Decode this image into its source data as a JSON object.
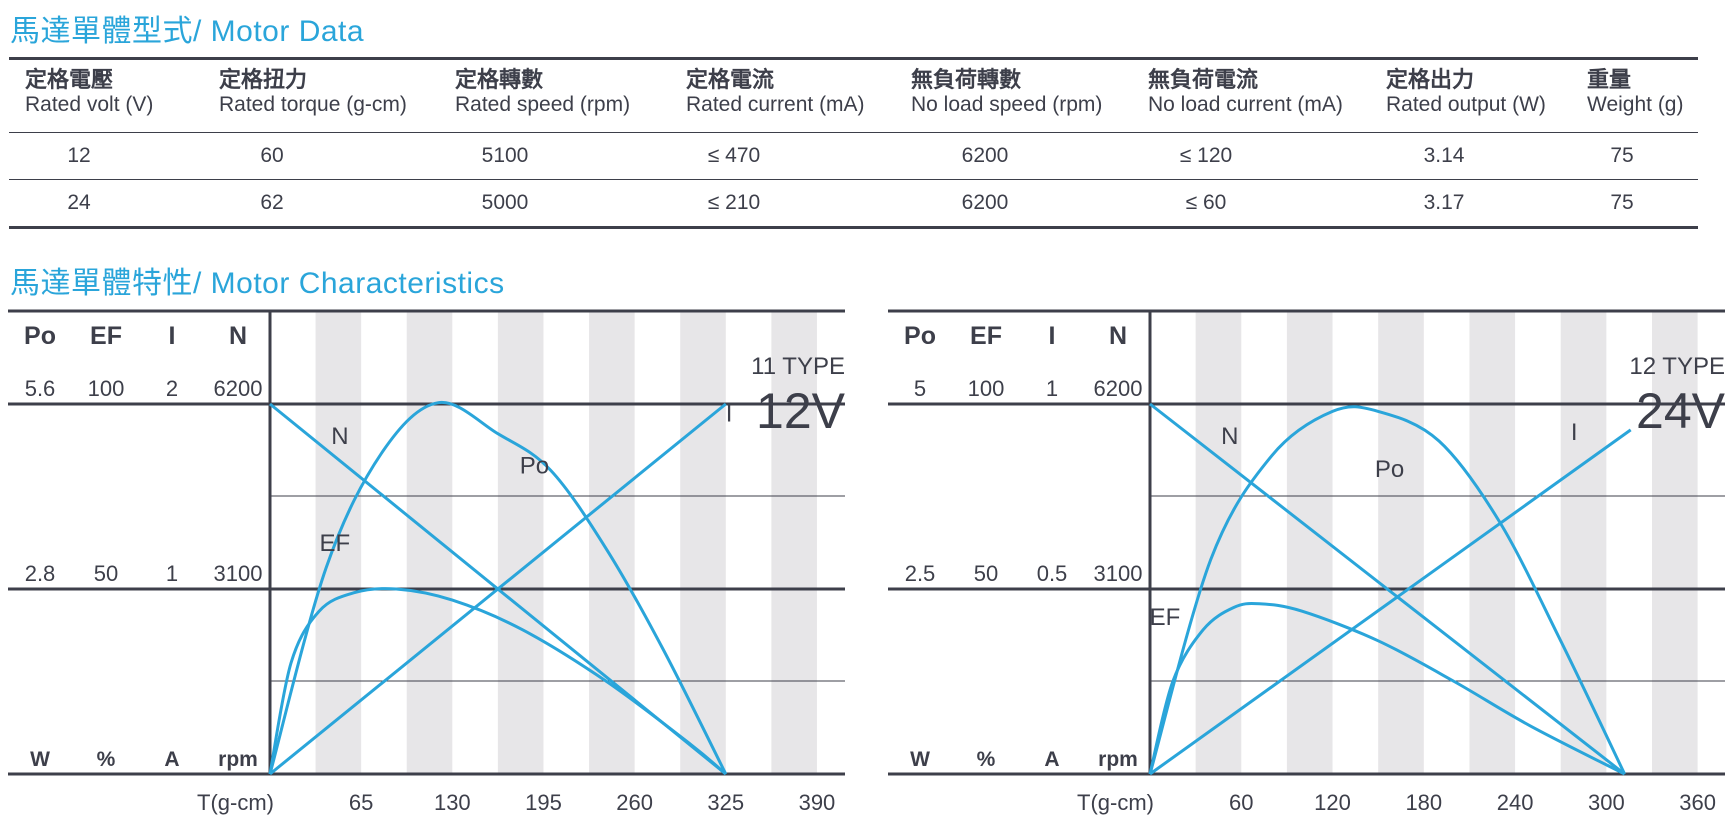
{
  "section1_title": "馬達單體型式/ Motor Data",
  "section2_title": "馬達單體特性/ Motor Characteristics",
  "spec_table": {
    "headers": [
      {
        "zh": "定格電壓",
        "en": "Rated volt (V)"
      },
      {
        "zh": "定格扭力",
        "en": "Rated torque (g-cm)"
      },
      {
        "zh": "定格轉數",
        "en": "Rated speed (rpm)"
      },
      {
        "zh": "定格電流",
        "en": "Rated current (mA)"
      },
      {
        "zh": "無負荷轉數",
        "en": "No load speed (rpm)"
      },
      {
        "zh": "無負荷電流",
        "en": "No load current (mA)"
      },
      {
        "zh": "定格出力",
        "en": "Rated output (W)"
      },
      {
        "zh": "重量",
        "en": "Weight (g)"
      }
    ],
    "rows": [
      [
        "12",
        "60",
        "5100",
        "≤ 470",
        "6200",
        "≤ 120",
        "3.14",
        "75"
      ],
      [
        "24",
        "62",
        "5000",
        "≤ 210",
        "6200",
        "≤ 60",
        "3.17",
        "75"
      ]
    ]
  },
  "chart_data": [
    {
      "type": "line",
      "title": "11 TYPE",
      "subtitle": "12V",
      "xlabel": "T(g-cm)",
      "x_ticks": [
        65,
        130,
        195,
        260,
        325,
        390
      ],
      "xlim": [
        0,
        410
      ],
      "axes": [
        {
          "name": "Po",
          "unit": "W",
          "max": 5.6,
          "mid": 2.8
        },
        {
          "name": "EF",
          "unit": "%",
          "max": 100,
          "mid": 50
        },
        {
          "name": "I",
          "unit": "A",
          "max": 2,
          "mid": 1
        },
        {
          "name": "N",
          "unit": "rpm",
          "max": 6200,
          "mid": 3100
        }
      ],
      "series": [
        {
          "name": "N",
          "axis": "N",
          "x": [
            0,
            325
          ],
          "values": [
            6200,
            0
          ]
        },
        {
          "name": "I",
          "axis": "I",
          "x": [
            0,
            325
          ],
          "values": [
            0,
            2
          ]
        },
        {
          "name": "Po",
          "axis": "Po",
          "x": [
            0,
            40,
            80,
            120,
            162.5,
            200,
            240,
            280,
            325
          ],
          "values": [
            0,
            3.12,
            4.87,
            5.62,
            5.15,
            4.6,
            3.4,
            1.9,
            0
          ]
        },
        {
          "name": "EF",
          "axis": "EF",
          "x": [
            0,
            15,
            35,
            60,
            90,
            130,
            180,
            240,
            300,
            325
          ],
          "values": [
            0,
            30,
            44,
            49,
            50,
            47,
            39,
            25,
            8,
            0
          ]
        }
      ]
    },
    {
      "type": "line",
      "title": "12 TYPE",
      "subtitle": "24V",
      "xlabel": "T(g-cm)",
      "x_ticks": [
        60,
        120,
        180,
        240,
        300,
        360
      ],
      "xlim": [
        0,
        378
      ],
      "axes": [
        {
          "name": "Po",
          "unit": "W",
          "max": 5,
          "mid": 2.5
        },
        {
          "name": "EF",
          "unit": "%",
          "max": 100,
          "mid": 50
        },
        {
          "name": "I",
          "unit": "A",
          "max": 1,
          "mid": 0.5
        },
        {
          "name": "N",
          "unit": "rpm",
          "max": 6200,
          "mid": 3100
        }
      ],
      "series": [
        {
          "name": "N",
          "axis": "N",
          "x": [
            0,
            312
          ],
          "values": [
            6200,
            0
          ]
        },
        {
          "name": "I",
          "axis": "I",
          "x": [
            0,
            316
          ],
          "values": [
            0,
            0.93
          ]
        },
        {
          "name": "Po",
          "axis": "Po",
          "x": [
            0,
            40,
            80,
            120,
            150,
            190,
            230,
            270,
            312
          ],
          "values": [
            0,
            2.9,
            4.3,
            4.9,
            4.9,
            4.5,
            3.4,
            1.8,
            0
          ]
        },
        {
          "name": "EF",
          "axis": "EF",
          "x": [
            0,
            15,
            35,
            55,
            72,
            100,
            150,
            200,
            250,
            312
          ],
          "values": [
            0,
            25,
            39,
            45,
            46,
            44,
            36,
            25,
            13,
            0
          ]
        }
      ]
    }
  ],
  "colors": {
    "accent": "#2aa5da",
    "text": "#3d3f4a",
    "stripe": "#e7e6e8"
  }
}
